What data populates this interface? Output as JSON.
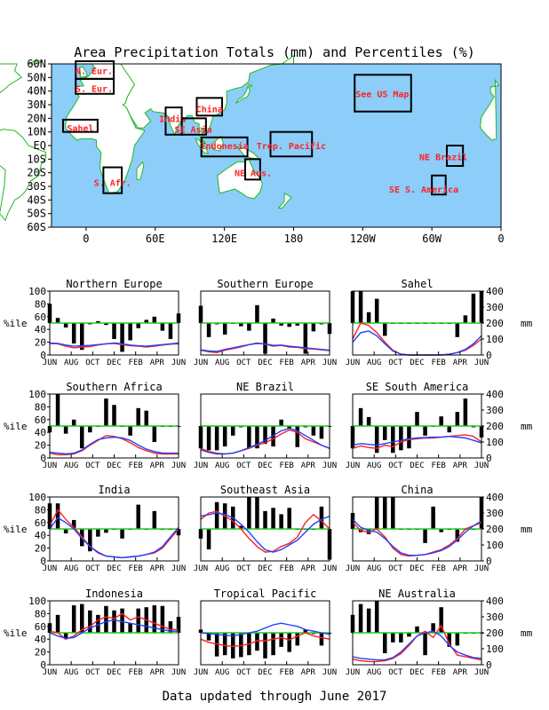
{
  "title": "Area Precipitation Totals (mm) and Percentiles (%)",
  "footer": "Data updated through June 2017",
  "colors": {
    "ocean": "#8ccdfa",
    "land": "#ffffff",
    "coast": "#22b822",
    "box_label": "#ff2222",
    "bars": "#000000",
    "series_red": "#ff2020",
    "series_blue": "#2040ff",
    "ref_line": "#22cc22"
  },
  "map": {
    "lat_labels": [
      "60N",
      "50N",
      "40N",
      "30N",
      "20N",
      "10N",
      "EQ",
      "10S",
      "20S",
      "30S",
      "40S",
      "50S",
      "60S"
    ],
    "lon_labels": [
      "0",
      "60E",
      "120E",
      "180",
      "120W",
      "60W",
      "0"
    ],
    "regions": [
      {
        "label": "N. Eur."
      },
      {
        "label": "S. Eur."
      },
      {
        "label": "Sahel"
      },
      {
        "label": "S. Afr."
      },
      {
        "label": "India"
      },
      {
        "label": "SE Asia"
      },
      {
        "label": "China"
      },
      {
        "label": "Indonesia"
      },
      {
        "label": "Trop. Pacific"
      },
      {
        "label": "NE Aus."
      },
      {
        "label": "See US Map"
      },
      {
        "label": "NE Brazil"
      },
      {
        "label": "SE S. America"
      }
    ]
  },
  "panel_axes": {
    "x_ticks": [
      "JUN",
      "AUG",
      "OCT",
      "DEC",
      "FEB",
      "APR",
      "JUN"
    ],
    "left_ticks": [
      "0",
      "20",
      "40",
      "60",
      "80",
      "100"
    ],
    "right_ticks": [
      "0",
      "100",
      "200",
      "300",
      "400"
    ],
    "left_label": "%ile",
    "right_label": "mm"
  },
  "chart_data": [
    {
      "type": "bar",
      "title": "Northern Europe",
      "percentile_ylim": [
        0,
        100
      ],
      "mm_ylim": [
        0,
        400
      ],
      "reference_percentile": 50,
      "bars_percentile": [
        80,
        58,
        43,
        18,
        8,
        48,
        53,
        47,
        25,
        5,
        23,
        42,
        55,
        60,
        38,
        25,
        65
      ],
      "mm_red": [
        72,
        70,
        55,
        45,
        50,
        52,
        63,
        70,
        72,
        65,
        58,
        55,
        50,
        55,
        62,
        68,
        70
      ],
      "mm_blue": [
        75,
        72,
        62,
        55,
        58,
        60,
        65,
        70,
        75,
        70,
        62,
        58,
        55,
        60,
        65,
        70,
        75
      ]
    },
    {
      "type": "bar",
      "title": "Southern Europe",
      "percentile_ylim": [
        0,
        100
      ],
      "mm_ylim": [
        0,
        400
      ],
      "reference_percentile": 50,
      "bars_percentile": [
        77,
        28,
        48,
        32,
        50,
        45,
        38,
        78,
        2,
        57,
        46,
        44,
        46,
        2,
        37,
        48,
        33
      ],
      "mm_red": [
        30,
        20,
        15,
        30,
        40,
        50,
        65,
        75,
        68,
        55,
        60,
        50,
        48,
        40,
        38,
        32,
        28
      ],
      "mm_blue": [
        32,
        25,
        22,
        35,
        45,
        55,
        65,
        72,
        70,
        60,
        62,
        55,
        50,
        45,
        40,
        35,
        30
      ]
    },
    {
      "type": "bar",
      "title": "Sahel",
      "percentile_ylim": [
        0,
        100
      ],
      "mm_ylim": [
        0,
        400
      ],
      "reference_percentile": 50,
      "bars_percentile": [
        100,
        100,
        67,
        88,
        30,
        50,
        50,
        50,
        50,
        50,
        50,
        50,
        50,
        28,
        62,
        96,
        100
      ],
      "mm_red": [
        100,
        200,
        185,
        140,
        80,
        30,
        5,
        0,
        0,
        0,
        0,
        0,
        5,
        15,
        30,
        60,
        100
      ],
      "mm_blue": [
        80,
        140,
        150,
        120,
        70,
        25,
        5,
        0,
        0,
        0,
        0,
        0,
        5,
        15,
        35,
        70,
        120
      ]
    },
    {
      "type": "bar",
      "title": "Southern Africa",
      "percentile_ylim": [
        0,
        100
      ],
      "mm_ylim": [
        0,
        400
      ],
      "reference_percentile": 50,
      "bars_percentile": [
        40,
        100,
        38,
        60,
        15,
        40,
        50,
        93,
        83,
        50,
        35,
        78,
        74,
        25,
        50,
        50,
        50
      ],
      "mm_red": [
        30,
        20,
        20,
        25,
        45,
        80,
        110,
        140,
        135,
        120,
        95,
        65,
        45,
        30,
        25,
        25,
        25
      ],
      "mm_blue": [
        35,
        30,
        25,
        30,
        50,
        85,
        115,
        125,
        130,
        125,
        110,
        80,
        55,
        40,
        30,
        30,
        30
      ],
      "bars_positive": false
    },
    {
      "type": "bar",
      "title": "NE Brazil",
      "percentile_ylim": [
        0,
        100
      ],
      "mm_ylim": [
        0,
        400
      ],
      "reference_percentile": 50,
      "bars_percentile": [
        15,
        12,
        12,
        18,
        35,
        48,
        15,
        15,
        22,
        18,
        60,
        46,
        17,
        48,
        35,
        30,
        50
      ],
      "mm_red": [
        60,
        40,
        30,
        25,
        30,
        45,
        60,
        80,
        95,
        120,
        150,
        175,
        160,
        120,
        100,
        80,
        60
      ],
      "mm_blue": [
        50,
        35,
        25,
        25,
        30,
        45,
        65,
        85,
        110,
        140,
        170,
        185,
        170,
        140,
        110,
        80,
        60
      ]
    },
    {
      "type": "bar",
      "title": "SE South America",
      "percentile_ylim": [
        0,
        100
      ],
      "mm_ylim": [
        0,
        400
      ],
      "reference_percentile": 50,
      "bars_percentile": [
        15,
        78,
        64,
        8,
        28,
        8,
        12,
        15,
        72,
        35,
        50,
        65,
        40,
        72,
        93,
        48,
        32
      ],
      "mm_red": [
        60,
        75,
        65,
        60,
        80,
        70,
        100,
        115,
        120,
        125,
        125,
        130,
        135,
        140,
        145,
        135,
        100
      ],
      "mm_blue": [
        80,
        90,
        85,
        80,
        90,
        100,
        110,
        120,
        125,
        128,
        130,
        130,
        135,
        130,
        125,
        110,
        95
      ]
    },
    {
      "type": "bar",
      "title": "India",
      "percentile_ylim": [
        0,
        100
      ],
      "mm_ylim": [
        0,
        400
      ],
      "reference_percentile": 50,
      "bars_percentile": [
        90,
        90,
        43,
        64,
        23,
        15,
        38,
        44,
        50,
        35,
        50,
        88,
        50,
        78,
        50,
        50,
        40
      ],
      "mm_red": [
        220,
        320,
        260,
        210,
        150,
        90,
        50,
        30,
        25,
        20,
        25,
        30,
        40,
        50,
        80,
        140,
        200
      ],
      "mm_blue": [
        200,
        270,
        240,
        200,
        140,
        90,
        55,
        30,
        25,
        20,
        25,
        30,
        40,
        55,
        90,
        150,
        210
      ]
    },
    {
      "type": "bar",
      "title": "Southeast Asia",
      "percentile_ylim": [
        0,
        100
      ],
      "mm_ylim": [
        0,
        400
      ],
      "reference_percentile": 50,
      "bars_percentile": [
        35,
        18,
        92,
        90,
        85,
        55,
        100,
        100,
        78,
        83,
        73,
        83,
        50,
        50,
        50,
        85,
        2
      ],
      "mm_red": [
        260,
        300,
        310,
        280,
        250,
        200,
        140,
        90,
        55,
        60,
        90,
        110,
        150,
        240,
        290,
        250,
        200
      ],
      "mm_blue": [
        280,
        290,
        300,
        290,
        270,
        230,
        180,
        120,
        70,
        55,
        70,
        100,
        130,
        180,
        230,
        260,
        280
      ]
    },
    {
      "type": "bar",
      "title": "China",
      "percentile_ylim": [
        0,
        100
      ],
      "mm_ylim": [
        0,
        400
      ],
      "reference_percentile": 50,
      "bars_percentile": [
        75,
        45,
        42,
        100,
        100,
        100,
        50,
        50,
        50,
        28,
        85,
        45,
        50,
        30,
        50,
        50,
        100
      ],
      "mm_red": [
        240,
        190,
        180,
        200,
        150,
        80,
        40,
        30,
        35,
        40,
        55,
        70,
        100,
        140,
        200,
        220,
        240
      ],
      "mm_blue": [
        260,
        210,
        190,
        180,
        140,
        90,
        50,
        35,
        35,
        40,
        50,
        65,
        90,
        130,
        180,
        220,
        250
      ]
    },
    {
      "type": "bar",
      "title": "Indonesia",
      "percentile_ylim": [
        0,
        100
      ],
      "mm_ylim": [
        0,
        400
      ],
      "reference_percentile": 50,
      "bars_percentile": [
        65,
        78,
        40,
        93,
        95,
        85,
        78,
        92,
        85,
        88,
        65,
        88,
        90,
        93,
        92,
        68,
        75
      ],
      "mm_red": [
        210,
        200,
        160,
        180,
        220,
        240,
        280,
        300,
        290,
        320,
        280,
        300,
        280,
        260,
        240,
        220,
        220
      ],
      "mm_blue": [
        200,
        180,
        165,
        170,
        200,
        230,
        250,
        270,
        280,
        270,
        260,
        250,
        240,
        230,
        220,
        210,
        210
      ]
    },
    {
      "type": "bar",
      "title": "Tropical Pacific",
      "percentile_ylim": [
        0,
        100
      ],
      "mm_ylim": [
        0,
        400
      ],
      "reference_percentile": 50,
      "bars_percentile": [
        55,
        38,
        13,
        15,
        10,
        12,
        15,
        22,
        10,
        15,
        28,
        20,
        30,
        55,
        48,
        30,
        50
      ],
      "mm_red": [
        160,
        140,
        130,
        120,
        115,
        120,
        130,
        150,
        150,
        160,
        170,
        155,
        180,
        200,
        180,
        170,
        160
      ],
      "mm_blue": [
        200,
        195,
        190,
        185,
        180,
        190,
        200,
        210,
        230,
        250,
        260,
        250,
        240,
        220,
        210,
        200,
        190
      ]
    },
    {
      "type": "bar",
      "title": "NE Australia",
      "percentile_ylim": [
        0,
        100
      ],
      "mm_ylim": [
        0,
        400
      ],
      "reference_percentile": 50,
      "bars_percentile": [
        78,
        95,
        88,
        100,
        18,
        35,
        35,
        44,
        60,
        15,
        65,
        90,
        28,
        30,
        50,
        50,
        50
      ],
      "mm_red": [
        35,
        25,
        20,
        20,
        25,
        40,
        70,
        120,
        180,
        210,
        170,
        245,
        130,
        60,
        50,
        40,
        30
      ],
      "mm_blue": [
        50,
        40,
        35,
        30,
        30,
        45,
        80,
        130,
        180,
        200,
        210,
        180,
        120,
        80,
        60,
        45,
        40
      ]
    }
  ]
}
